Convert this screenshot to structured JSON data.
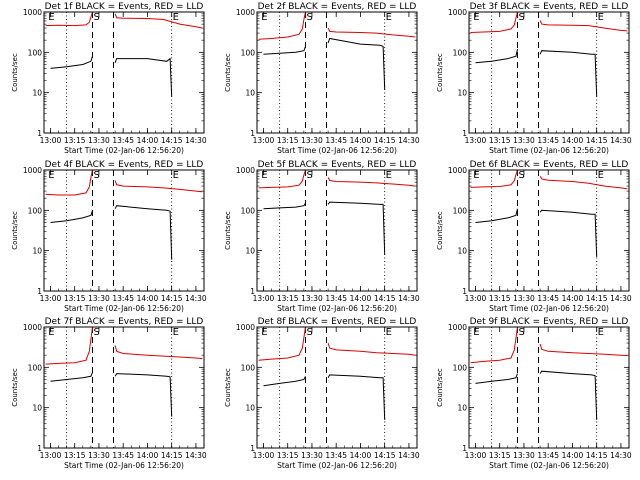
{
  "figure": {
    "xlabel": "Start Time (02-Jan-06 12:56:20)",
    "ylabel": "Counts/sec",
    "x_tick_labels": [
      "13:00",
      "13:15",
      "13:30",
      "13:45",
      "14:00",
      "14:15",
      "14:30"
    ],
    "y_tick_labels": [
      "1",
      "10",
      "100",
      "1000"
    ],
    "colors": {
      "events": "#000000",
      "lld": "#e00000",
      "axes": "#000000"
    }
  },
  "chart_data": [
    {
      "type": "line",
      "title": "Det 1f BLACK = Events, RED = LLD",
      "xlabel": "Start Time (02-Jan-06 12:56:20)",
      "ylabel": "Counts/sec",
      "x_unit": "HH:MM",
      "xlim": [
        "12:56",
        "14:35"
      ],
      "ylim": [
        1,
        1000
      ],
      "y_scale": "log",
      "dashed_markers": [
        "13:26",
        "13:39"
      ],
      "dotted_markers": [
        "13:10",
        "14:15"
      ],
      "annotations": [
        {
          "text": "S",
          "x": "13:26"
        },
        {
          "text": "E",
          "x": "14:15"
        },
        {
          "text": "E",
          "x": "12:58"
        }
      ],
      "series": [
        {
          "color": "#e00000",
          "x": [
            "12:57",
            "13:05",
            "13:15",
            "13:22",
            "13:24",
            "13:25",
            "13:26",
            "13:40",
            "13:41",
            "13:45",
            "14:00",
            "14:10",
            "14:20",
            "14:30",
            "14:34"
          ],
          "y": [
            460,
            470,
            460,
            480,
            560,
            750,
            1000,
            900,
            720,
            700,
            690,
            650,
            500,
            430,
            400
          ]
        },
        {
          "color": "#000000",
          "x": [
            "13:00",
            "13:10",
            "13:20",
            "13:25",
            "13:26",
            "13:40",
            "13:41",
            "14:00",
            "14:12",
            "14:14",
            "14:15"
          ],
          "y": [
            40,
            44,
            50,
            60,
            80,
            55,
            70,
            70,
            60,
            70,
            8
          ]
        }
      ]
    },
    {
      "type": "line",
      "title": "Det 2f BLACK = Events, RED = LLD",
      "xlabel": "Start Time (02-Jan-06 12:56:20)",
      "ylabel": "Counts/sec",
      "x_unit": "HH:MM",
      "xlim": [
        "12:56",
        "14:35"
      ],
      "ylim": [
        1,
        1000
      ],
      "y_scale": "log",
      "dashed_markers": [
        "13:26",
        "13:39"
      ],
      "dotted_markers": [
        "13:10",
        "14:15"
      ],
      "annotations": [
        {
          "text": "S",
          "x": "13:26"
        },
        {
          "text": "E",
          "x": "14:15"
        },
        {
          "text": "E",
          "x": "12:58"
        }
      ],
      "series": [
        {
          "color": "#e00000",
          "x": [
            "12:57",
            "13:05",
            "13:15",
            "13:22",
            "13:24",
            "13:25",
            "13:26",
            "13:40",
            "13:41",
            "13:45",
            "14:00",
            "14:10",
            "14:20",
            "14:30",
            "14:34"
          ],
          "y": [
            210,
            220,
            240,
            280,
            380,
            650,
            1000,
            400,
            330,
            320,
            310,
            300,
            270,
            250,
            240
          ]
        },
        {
          "color": "#000000",
          "x": [
            "13:00",
            "13:10",
            "13:20",
            "13:25",
            "13:26",
            "13:40",
            "13:41",
            "14:00",
            "14:12",
            "14:14",
            "14:15"
          ],
          "y": [
            90,
            95,
            100,
            110,
            140,
            170,
            220,
            160,
            150,
            140,
            12
          ]
        }
      ]
    },
    {
      "type": "line",
      "title": "Det 3f BLACK = Events, RED = LLD",
      "xlabel": "Start Time (02-Jan-06 12:56:20)",
      "ylabel": "Counts/sec",
      "x_unit": "HH:MM",
      "xlim": [
        "12:56",
        "14:35"
      ],
      "ylim": [
        1,
        1000
      ],
      "y_scale": "log",
      "dashed_markers": [
        "13:26",
        "13:39"
      ],
      "dotted_markers": [
        "13:10",
        "14:15"
      ],
      "annotations": [
        {
          "text": "S",
          "x": "13:26"
        },
        {
          "text": "E",
          "x": "14:15"
        },
        {
          "text": "E",
          "x": "12:58"
        }
      ],
      "series": [
        {
          "color": "#e00000",
          "x": [
            "12:57",
            "13:05",
            "13:15",
            "13:22",
            "13:24",
            "13:25",
            "13:26",
            "13:40",
            "13:41",
            "13:45",
            "14:00",
            "14:10",
            "14:20",
            "14:30",
            "14:34"
          ],
          "y": [
            310,
            320,
            330,
            380,
            480,
            700,
            1000,
            620,
            500,
            480,
            470,
            460,
            400,
            350,
            340
          ]
        },
        {
          "color": "#000000",
          "x": [
            "13:00",
            "13:10",
            "13:20",
            "13:25",
            "13:26",
            "13:40",
            "13:41",
            "14:00",
            "14:12",
            "14:14",
            "14:15"
          ],
          "y": [
            55,
            60,
            70,
            80,
            120,
            90,
            110,
            100,
            90,
            90,
            8
          ]
        }
      ]
    },
    {
      "type": "line",
      "title": "Det 4f BLACK = Events, RED = LLD",
      "xlabel": "Start Time (02-Jan-06 12:56:20)",
      "ylabel": "Counts/sec",
      "x_unit": "HH:MM",
      "xlim": [
        "12:56",
        "14:35"
      ],
      "ylim": [
        1,
        1000
      ],
      "y_scale": "log",
      "dashed_markers": [
        "13:26",
        "13:39"
      ],
      "dotted_markers": [
        "13:10",
        "14:15"
      ],
      "annotations": [
        {
          "text": "S",
          "x": "13:26"
        },
        {
          "text": "E",
          "x": "14:15"
        },
        {
          "text": "E",
          "x": "12:58"
        }
      ],
      "series": [
        {
          "color": "#e00000",
          "x": [
            "12:57",
            "13:05",
            "13:15",
            "13:22",
            "13:24",
            "13:25",
            "13:26",
            "13:40",
            "13:41",
            "13:45",
            "14:00",
            "14:10",
            "14:20",
            "14:30",
            "14:34"
          ],
          "y": [
            250,
            240,
            240,
            270,
            380,
            650,
            1000,
            550,
            430,
            400,
            380,
            360,
            330,
            300,
            290
          ]
        },
        {
          "color": "#000000",
          "x": [
            "13:00",
            "13:10",
            "13:20",
            "13:25",
            "13:26",
            "13:40",
            "13:41",
            "14:00",
            "14:12",
            "14:14",
            "14:15"
          ],
          "y": [
            50,
            55,
            65,
            75,
            100,
            110,
            130,
            110,
            100,
            95,
            6
          ]
        }
      ]
    },
    {
      "type": "line",
      "title": "Det 5f BLACK = Events, RED = LLD",
      "xlabel": "Start Time (02-Jan-06 12:56:20)",
      "ylabel": "Counts/sec",
      "x_unit": "HH:MM",
      "xlim": [
        "12:56",
        "14:35"
      ],
      "ylim": [
        1,
        1000
      ],
      "y_scale": "log",
      "dashed_markers": [
        "13:26",
        "13:39"
      ],
      "dotted_markers": [
        "13:10",
        "14:15"
      ],
      "annotations": [
        {
          "text": "S",
          "x": "13:26"
        },
        {
          "text": "E",
          "x": "14:15"
        },
        {
          "text": "E",
          "x": "12:58"
        }
      ],
      "series": [
        {
          "color": "#e00000",
          "x": [
            "12:57",
            "13:05",
            "13:15",
            "13:22",
            "13:24",
            "13:25",
            "13:26",
            "13:40",
            "13:41",
            "13:45",
            "14:00",
            "14:10",
            "14:20",
            "14:30",
            "14:34"
          ],
          "y": [
            360,
            370,
            380,
            420,
            530,
            750,
            1000,
            650,
            550,
            520,
            500,
            480,
            450,
            420,
            400
          ]
        },
        {
          "color": "#000000",
          "x": [
            "13:00",
            "13:10",
            "13:20",
            "13:25",
            "13:26",
            "13:40",
            "13:41",
            "14:00",
            "14:12",
            "14:14",
            "14:15"
          ],
          "y": [
            110,
            115,
            120,
            130,
            150,
            140,
            160,
            150,
            140,
            140,
            8
          ]
        }
      ]
    },
    {
      "type": "line",
      "title": "Det 6f BLACK = Events, RED = LLD",
      "xlabel": "Start Time (02-Jan-06 12:56:20)",
      "ylabel": "Counts/sec",
      "x_unit": "HH:MM",
      "xlim": [
        "12:56",
        "14:35"
      ],
      "ylim": [
        1,
        1000
      ],
      "y_scale": "log",
      "dashed_markers": [
        "13:26",
        "13:39"
      ],
      "dotted_markers": [
        "13:10",
        "14:15"
      ],
      "annotations": [
        {
          "text": "S",
          "x": "13:26"
        },
        {
          "text": "E",
          "x": "14:15"
        },
        {
          "text": "E",
          "x": "12:58"
        }
      ],
      "series": [
        {
          "color": "#e00000",
          "x": [
            "12:57",
            "13:05",
            "13:15",
            "13:22",
            "13:24",
            "13:25",
            "13:26",
            "13:40",
            "13:41",
            "13:45",
            "14:00",
            "14:10",
            "14:20",
            "14:30",
            "14:34"
          ],
          "y": [
            370,
            380,
            390,
            430,
            540,
            760,
            1000,
            700,
            600,
            560,
            520,
            470,
            400,
            360,
            340
          ]
        },
        {
          "color": "#000000",
          "x": [
            "13:00",
            "13:10",
            "13:20",
            "13:25",
            "13:26",
            "13:40",
            "13:41",
            "14:00",
            "14:12",
            "14:14",
            "14:15"
          ],
          "y": [
            50,
            55,
            65,
            75,
            110,
            90,
            100,
            90,
            80,
            80,
            7
          ]
        }
      ]
    },
    {
      "type": "line",
      "title": "Det 7f BLACK = Events, RED = LLD",
      "xlabel": "Start Time (02-Jan-06 12:56:20)",
      "ylabel": "Counts/sec",
      "x_unit": "HH:MM",
      "xlim": [
        "12:56",
        "14:35"
      ],
      "ylim": [
        1,
        1000
      ],
      "y_scale": "log",
      "dashed_markers": [
        "13:26",
        "13:39"
      ],
      "dotted_markers": [
        "13:10",
        "14:15"
      ],
      "annotations": [
        {
          "text": "S",
          "x": "13:26"
        },
        {
          "text": "E",
          "x": "14:15"
        },
        {
          "text": "E",
          "x": "12:58"
        }
      ],
      "series": [
        {
          "color": "#e00000",
          "x": [
            "12:57",
            "13:05",
            "13:15",
            "13:22",
            "13:24",
            "13:25",
            "13:26",
            "13:40",
            "13:41",
            "13:45",
            "14:00",
            "14:10",
            "14:20",
            "14:30",
            "14:34"
          ],
          "y": [
            120,
            125,
            130,
            150,
            250,
            500,
            1000,
            350,
            250,
            220,
            200,
            190,
            180,
            170,
            165
          ]
        },
        {
          "color": "#000000",
          "x": [
            "13:00",
            "13:10",
            "13:20",
            "13:25",
            "13:26",
            "13:40",
            "13:41",
            "14:00",
            "14:12",
            "14:14",
            "14:15"
          ],
          "y": [
            45,
            50,
            55,
            60,
            75,
            60,
            70,
            65,
            60,
            58,
            6
          ]
        }
      ]
    },
    {
      "type": "line",
      "title": "Det 8f BLACK = Events, RED = LLD",
      "xlabel": "Start Time (02-Jan-06 12:56:20)",
      "ylabel": "Counts/sec",
      "x_unit": "HH:MM",
      "xlim": [
        "12:56",
        "14:35"
      ],
      "ylim": [
        1,
        1000
      ],
      "y_scale": "log",
      "dashed_markers": [
        "13:26",
        "13:39"
      ],
      "dotted_markers": [
        "13:10",
        "14:15"
      ],
      "annotations": [
        {
          "text": "S",
          "x": "13:26"
        },
        {
          "text": "E",
          "x": "14:15"
        },
        {
          "text": "E",
          "x": "12:58"
        }
      ],
      "series": [
        {
          "color": "#e00000",
          "x": [
            "12:57",
            "13:05",
            "13:15",
            "13:22",
            "13:24",
            "13:25",
            "13:26",
            "13:40",
            "13:41",
            "13:45",
            "14:00",
            "14:10",
            "14:20",
            "14:30",
            "14:34"
          ],
          "y": [
            150,
            160,
            170,
            200,
            300,
            550,
            1000,
            400,
            300,
            270,
            250,
            230,
            220,
            210,
            200
          ]
        },
        {
          "color": "#000000",
          "x": [
            "13:00",
            "13:10",
            "13:20",
            "13:25",
            "13:26",
            "13:40",
            "13:41",
            "14:00",
            "14:12",
            "14:14",
            "14:15"
          ],
          "y": [
            35,
            40,
            45,
            50,
            60,
            55,
            65,
            60,
            55,
            55,
            5
          ]
        }
      ]
    },
    {
      "type": "line",
      "title": "Det 9f BLACK = Events, RED = LLD",
      "xlabel": "Start Time (02-Jan-06 12:56:20)",
      "ylabel": "Counts/sec",
      "x_unit": "HH:MM",
      "xlim": [
        "12:56",
        "14:35"
      ],
      "ylim": [
        1,
        1000
      ],
      "y_scale": "log",
      "dashed_markers": [
        "13:26",
        "13:39"
      ],
      "dotted_markers": [
        "13:10",
        "14:15"
      ],
      "annotations": [
        {
          "text": "S",
          "x": "13:26"
        },
        {
          "text": "E",
          "x": "14:15"
        },
        {
          "text": "E",
          "x": "12:58"
        }
      ],
      "series": [
        {
          "color": "#e00000",
          "x": [
            "12:57",
            "13:05",
            "13:15",
            "13:22",
            "13:24",
            "13:25",
            "13:26",
            "13:40",
            "13:41",
            "13:45",
            "14:00",
            "14:10",
            "14:20",
            "14:30",
            "14:34"
          ],
          "y": [
            130,
            140,
            150,
            170,
            270,
            520,
            1000,
            380,
            280,
            250,
            230,
            220,
            210,
            200,
            195
          ]
        },
        {
          "color": "#000000",
          "x": [
            "13:00",
            "13:10",
            "13:20",
            "13:25",
            "13:26",
            "13:40",
            "13:41",
            "14:00",
            "14:12",
            "14:14",
            "14:15"
          ],
          "y": [
            40,
            45,
            50,
            55,
            70,
            70,
            80,
            70,
            65,
            62,
            5
          ]
        }
      ]
    }
  ]
}
